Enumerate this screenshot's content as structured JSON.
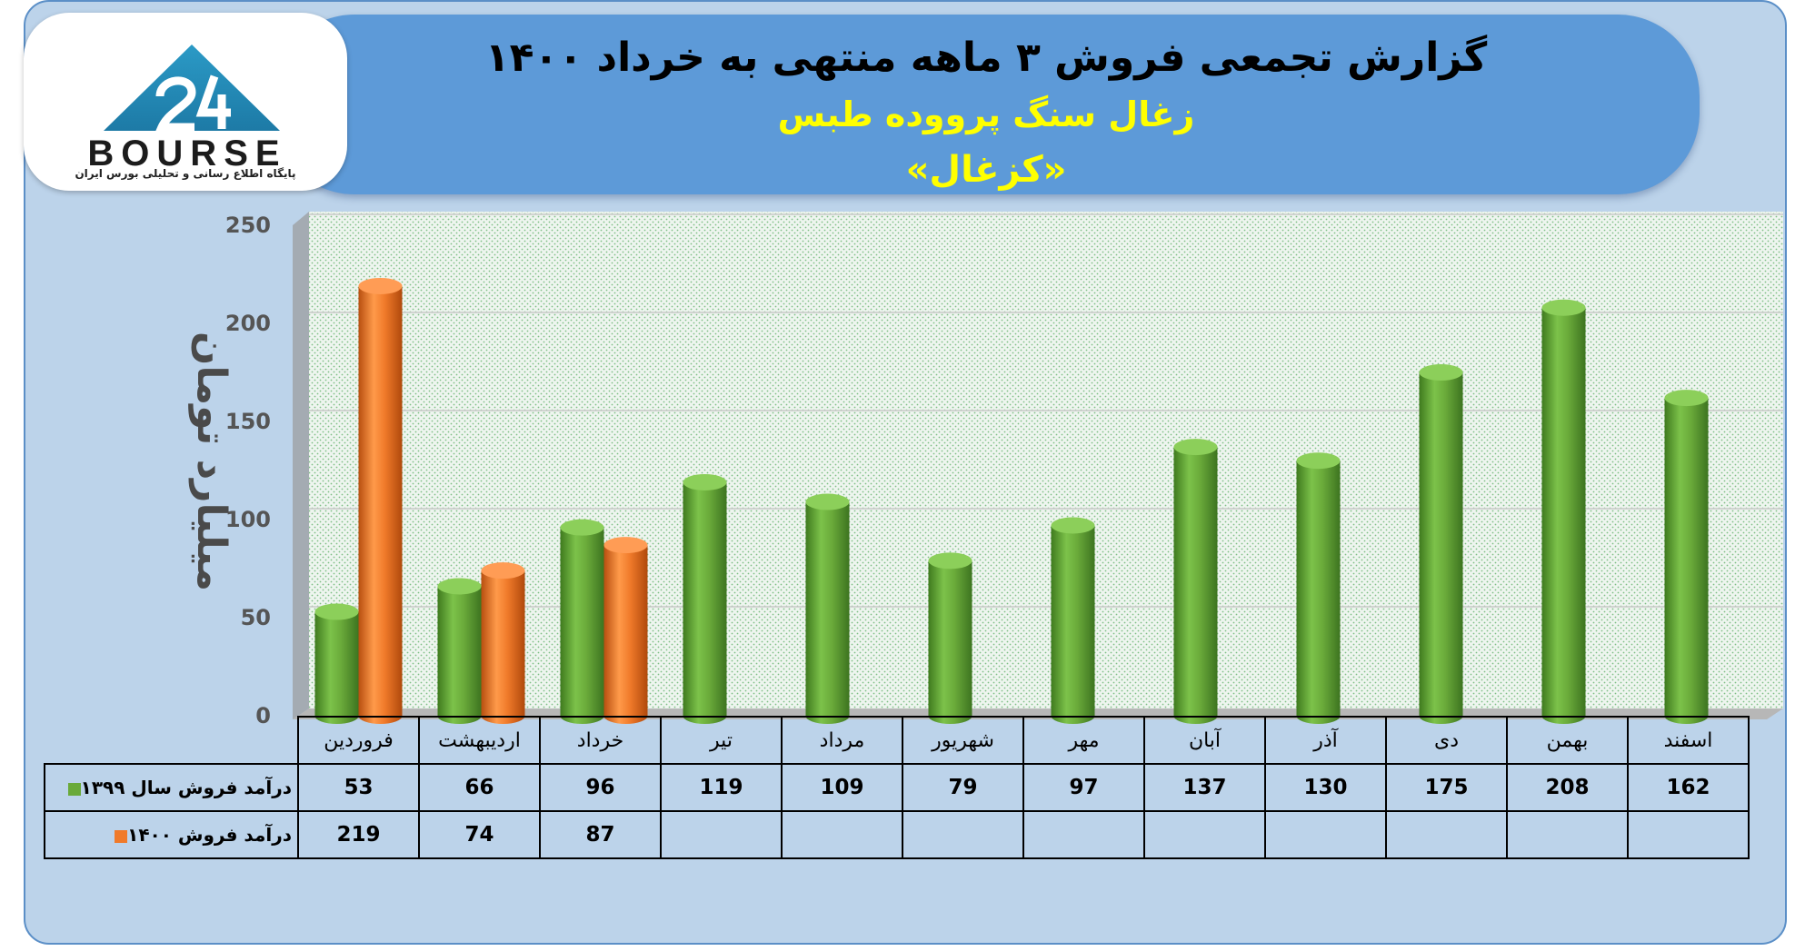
{
  "header": {
    "title": "گزارش تجمعی فروش ۳ ماهه منتهی به خرداد ۱۴۰۰",
    "subtitle": "زغال سنگ پرووده طبس",
    "symbol": "«کزغال»"
  },
  "logo": {
    "text": "BOURSE",
    "tagline": "پایگاه اطلاع رسانی و تحلیلی بورس ایران",
    "icon": "bourse-24-triangle-logo"
  },
  "colors": {
    "background": "#bcd3ea",
    "banner": "#5d9ad8",
    "title": "#000000",
    "subtitle": "#ffff00",
    "series_1399": "#6aaa3a",
    "series_1400": "#f07a2a"
  },
  "chart_data": {
    "type": "bar",
    "ylabel": "میلیارد تومان",
    "ylim": [
      0,
      250
    ],
    "yticks": [
      0,
      50,
      100,
      150,
      200,
      250
    ],
    "grid": true,
    "legend": "table-left",
    "categories": [
      "فروردین",
      "اردیبهشت",
      "خرداد",
      "تیر",
      "مرداد",
      "شهریور",
      "مهر",
      "آبان",
      "آذر",
      "دی",
      "بهمن",
      "اسفند"
    ],
    "series": [
      {
        "name": "درآمد فروش سال ۱۳۹۹",
        "values": [
          53,
          66,
          96,
          119,
          109,
          79,
          97,
          137,
          130,
          175,
          208,
          162
        ]
      },
      {
        "name": "درآمد فروش ۱۴۰۰",
        "values": [
          219,
          74,
          87,
          null,
          null,
          null,
          null,
          null,
          null,
          null,
          null,
          null
        ]
      }
    ]
  }
}
